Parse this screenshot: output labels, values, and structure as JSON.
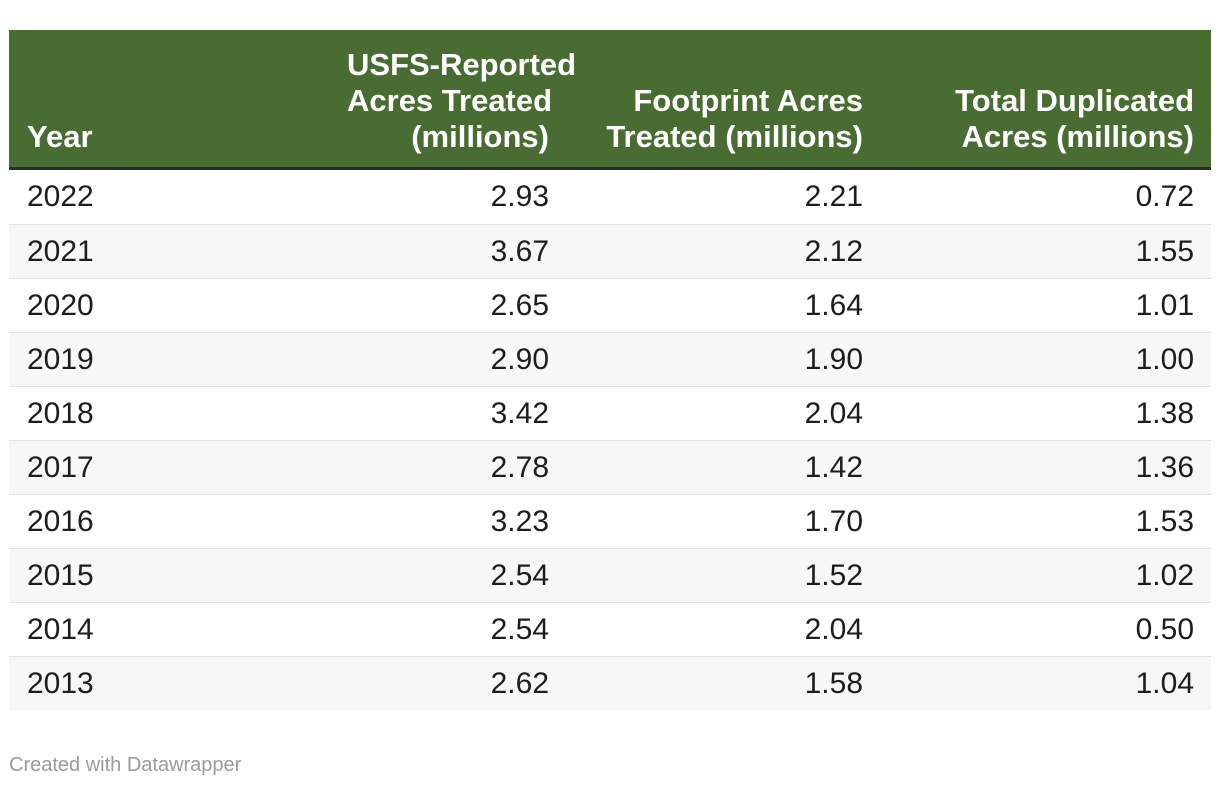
{
  "table": {
    "columns": [
      {
        "label": "Year",
        "lines": [
          "Year"
        ],
        "align": "left"
      },
      {
        "label": "USFS-Reported Acres Treated (millions)",
        "lines": [
          "USFS-Reported",
          "Acres Treated",
          "(millions)"
        ],
        "align": "right"
      },
      {
        "label": "Footprint Acres Treated (millions)",
        "lines": [
          "Footprint Acres",
          "Treated (millions)"
        ],
        "align": "right"
      },
      {
        "label": "Total Duplicated Acres (millions)",
        "lines": [
          "Total Duplicated",
          "Acres (millions)"
        ],
        "align": "right"
      }
    ],
    "rows": [
      [
        "2022",
        "2.93",
        "2.21",
        "0.72"
      ],
      [
        "2021",
        "3.67",
        "2.12",
        "1.55"
      ],
      [
        "2020",
        "2.65",
        "1.64",
        "1.01"
      ],
      [
        "2019",
        "2.90",
        "1.90",
        "1.00"
      ],
      [
        "2018",
        "3.42",
        "2.04",
        "1.38"
      ],
      [
        "2017",
        "2.78",
        "1.42",
        "1.36"
      ],
      [
        "2016",
        "3.23",
        "1.70",
        "1.53"
      ],
      [
        "2015",
        "2.54",
        "1.52",
        "1.02"
      ],
      [
        "2014",
        "2.54",
        "2.04",
        "0.50"
      ],
      [
        "2013",
        "2.62",
        "1.58",
        "1.04"
      ]
    ]
  },
  "footer": {
    "attribution": "Created with Datawrapper"
  },
  "colors": {
    "header_background": "#486c31",
    "header_text": "#ffffff",
    "header_bottom_border": "#2b2b2b",
    "row_text": "#1d1d1d",
    "stripe_background": "#f7f7f7",
    "row_border": "#e3e3e3",
    "attribution_text": "#9b9b9b"
  },
  "chart_data": {
    "type": "table",
    "title": "",
    "columns": [
      "Year",
      "USFS-Reported Acres Treated (millions)",
      "Footprint Acres Treated (millions)",
      "Total Duplicated Acres (millions)"
    ],
    "rows": [
      [
        2022,
        2.93,
        2.21,
        0.72
      ],
      [
        2021,
        3.67,
        2.12,
        1.55
      ],
      [
        2020,
        2.65,
        1.64,
        1.01
      ],
      [
        2019,
        2.9,
        1.9,
        1.0
      ],
      [
        2018,
        3.42,
        2.04,
        1.38
      ],
      [
        2017,
        2.78,
        1.42,
        1.36
      ],
      [
        2016,
        3.23,
        1.7,
        1.53
      ],
      [
        2015,
        2.54,
        1.52,
        1.02
      ],
      [
        2014,
        2.54,
        2.04,
        0.5
      ],
      [
        2013,
        2.62,
        1.58,
        1.04
      ]
    ],
    "notes": "Alternating row stripes; numeric columns right-aligned; green header band"
  }
}
